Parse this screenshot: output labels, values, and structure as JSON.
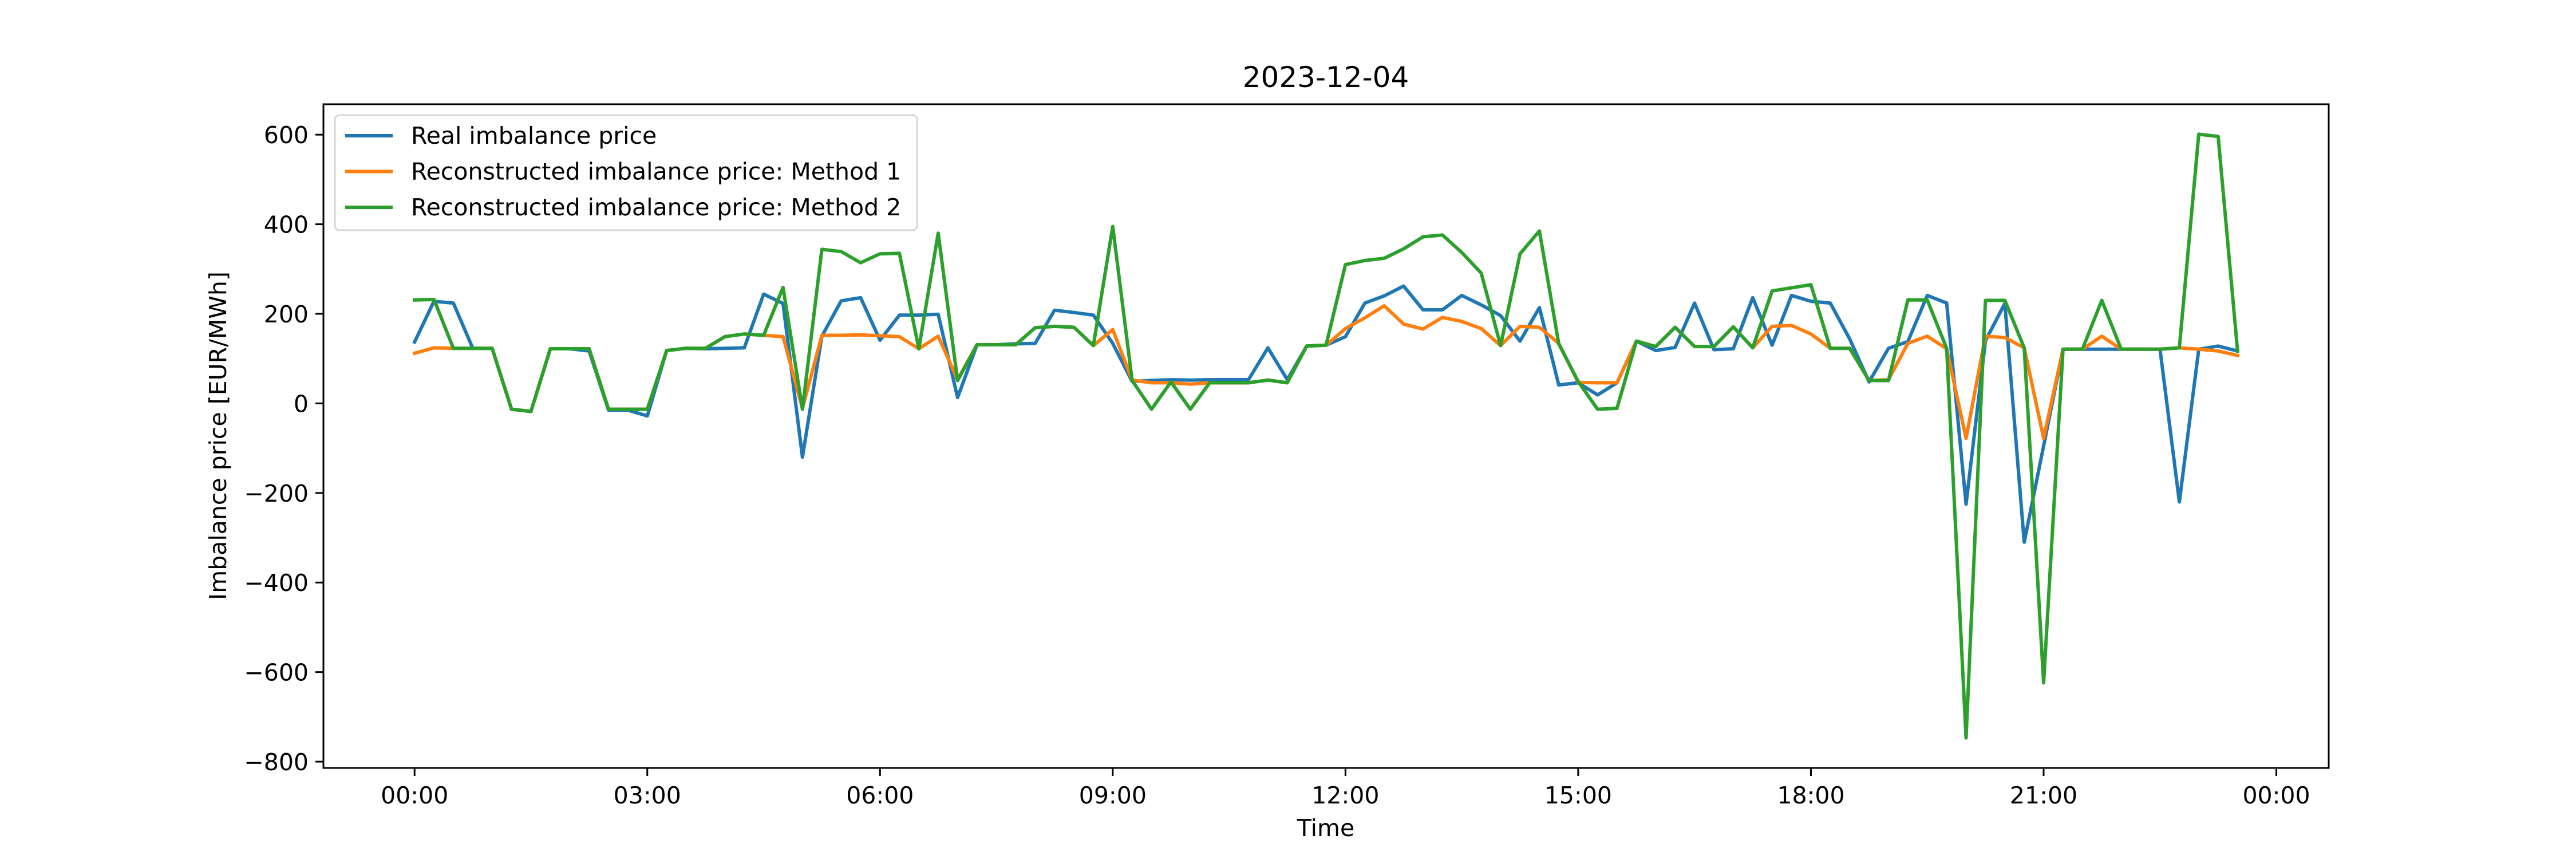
{
  "chart_data": {
    "type": "line",
    "title": "2023-12-04",
    "xlabel": "Time",
    "ylabel": "Imbalance price [EUR/MWh]",
    "x_tick_labels": [
      "00:00",
      "03:00",
      "06:00",
      "09:00",
      "12:00",
      "15:00",
      "18:00",
      "21:00",
      "00:00"
    ],
    "y_ticks": [
      600,
      400,
      200,
      0,
      -200,
      -400,
      -600,
      -800
    ],
    "y_tick_labels": [
      "600",
      "400",
      "200",
      "0",
      "−200",
      "−400",
      "−600",
      "−800"
    ],
    "ylim": [
      -814,
      668
    ],
    "x_interval_minutes": 15,
    "x_start": "00:00",
    "x_end": "23:30",
    "grid": false,
    "legend_position": "upper-left",
    "series": [
      {
        "name": "Real imbalance price",
        "color": "#1f77b4",
        "values": [
          137,
          228,
          224,
          123,
          123,
          -13,
          -18,
          122,
          122,
          117,
          -15,
          -15,
          -28,
          118,
          123,
          122,
          123,
          124,
          244,
          223,
          -120,
          150,
          229,
          236,
          141,
          197,
          197,
          199,
          13,
          131,
          131,
          133,
          134,
          208,
          203,
          197,
          134,
          49,
          51,
          53,
          52,
          53,
          53,
          53,
          124,
          53,
          128,
          130,
          149,
          224,
          240,
          262,
          209,
          209,
          241,
          220,
          196,
          139,
          214,
          41,
          46,
          19,
          46,
          139,
          118,
          125,
          224,
          120,
          122,
          236,
          130,
          241,
          228,
          224,
          144,
          48,
          123,
          138,
          241,
          224,
          -225,
          140,
          223,
          -310,
          -95,
          121,
          121,
          121,
          121,
          121,
          121,
          -220,
          121,
          128,
          117
        ]
      },
      {
        "name": "Reconstructed imbalance price: Method 1",
        "color": "#ff7f0e",
        "values": [
          112,
          124,
          123,
          123,
          123,
          -13,
          -18,
          122,
          122,
          122,
          -13,
          -13,
          -13,
          118,
          123,
          123,
          149,
          155,
          152,
          149,
          -11,
          152,
          152,
          153,
          151,
          149,
          122,
          150,
          53,
          131,
          131,
          131,
          169,
          172,
          170,
          129,
          165,
          52,
          46,
          46,
          43,
          46,
          46,
          46,
          52,
          46,
          128,
          130,
          167,
          191,
          218,
          177,
          166,
          192,
          183,
          167,
          129,
          172,
          170,
          134,
          47,
          46,
          46,
          139,
          127,
          170,
          127,
          127,
          171,
          124,
          172,
          174,
          155,
          123,
          123,
          51,
          53,
          134,
          150,
          122,
          -78,
          150,
          147,
          124,
          -78,
          121,
          121,
          150,
          121,
          121,
          121,
          124,
          121,
          117,
          107
        ]
      },
      {
        "name": "Reconstructed imbalance price: Method 2",
        "color": "#2ca02c",
        "values": [
          231,
          232,
          123,
          123,
          123,
          -13,
          -18,
          122,
          122,
          122,
          -13,
          -13,
          -13,
          118,
          123,
          123,
          149,
          155,
          152,
          259,
          -13,
          344,
          339,
          314,
          334,
          335,
          122,
          380,
          51,
          131,
          131,
          131,
          169,
          172,
          170,
          129,
          395,
          51,
          -13,
          48,
          -13,
          46,
          46,
          46,
          52,
          46,
          128,
          130,
          310,
          319,
          324,
          345,
          372,
          376,
          337,
          291,
          129,
          334,
          385,
          133,
          49,
          -13,
          -11,
          139,
          127,
          170,
          127,
          127,
          171,
          124,
          251,
          258,
          265,
          123,
          123,
          51,
          51,
          231,
          231,
          123,
          -747,
          230,
          230,
          124,
          -624,
          121,
          121,
          230,
          121,
          121,
          121,
          124,
          601,
          596,
          117
        ]
      }
    ]
  }
}
